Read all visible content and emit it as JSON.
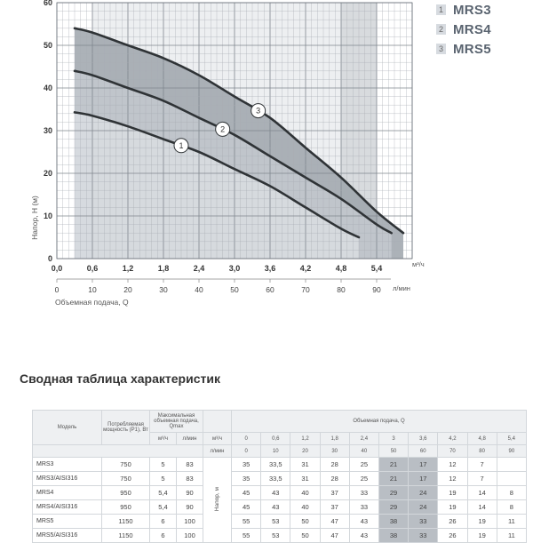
{
  "chart_data": {
    "type": "line",
    "ylabel": "Напор, H (м)",
    "x_units": "м³/ч",
    "x2_units": "л/мин",
    "x2_label": "Объемная подача, Q",
    "x_ticks": [
      "0,0",
      "0,6",
      "1,2",
      "1,8",
      "2,4",
      "3,0",
      "3,6",
      "4,2",
      "4,8",
      "5,4"
    ],
    "x2_ticks": [
      "0",
      "10",
      "20",
      "30",
      "40",
      "50",
      "60",
      "70",
      "80",
      "90"
    ],
    "y_ticks": [
      "0",
      "10",
      "20",
      "30",
      "40",
      "50",
      "60"
    ],
    "xlim": [
      0,
      6.0
    ],
    "ylim": [
      0,
      60
    ],
    "grid": true,
    "series": [
      {
        "name": "1",
        "label": "MRS3",
        "color": "#d9dde2",
        "x": [
          0,
          0.3,
          0.6,
          1.2,
          1.8,
          2.4,
          3.0,
          3.6,
          4.2,
          4.8,
          5.1
        ],
        "y": [
          35,
          34.3,
          33.5,
          31,
          28,
          25,
          21,
          17,
          12,
          7,
          5
        ]
      },
      {
        "name": "2",
        "label": "MRS4",
        "color": "#c4c9cf",
        "x": [
          0,
          0.3,
          0.6,
          1.2,
          1.8,
          2.4,
          3.0,
          3.6,
          4.2,
          4.8,
          5.4,
          5.65
        ],
        "y": [
          45,
          44,
          43,
          40,
          37,
          33,
          29,
          24,
          19,
          14,
          8,
          6
        ]
      },
      {
        "name": "3",
        "label": "MRS5",
        "color": "#9ea4ab",
        "x": [
          0,
          0.3,
          0.6,
          1.2,
          1.8,
          2.4,
          3.0,
          3.6,
          4.2,
          4.8,
          5.4,
          5.85
        ],
        "y": [
          55,
          54,
          53,
          50,
          47,
          43,
          38,
          33,
          26,
          19,
          11,
          6
        ]
      }
    ],
    "shaded_bands": [
      [
        0.6,
        4.8
      ],
      [
        4.8,
        5.4
      ]
    ]
  },
  "legend": [
    {
      "num": "1",
      "name": "MRS3"
    },
    {
      "num": "2",
      "name": "MRS4"
    },
    {
      "num": "3",
      "name": "MRS5"
    }
  ],
  "table": {
    "title": "Сводная таблица характеристик",
    "headers": {
      "model": "Модель",
      "power": "Потребляемая мощность (P1), Вт",
      "qmax": "Максимальная объемная подача, Qmax",
      "qmax_m3": "м³/ч",
      "qmax_lmin": "л/мин",
      "flow": "Объемная подача, Q",
      "unit_m3": "м³/ч",
      "unit_lmin": "л/мин",
      "head": "Напор, м"
    },
    "flow_m3": [
      "0",
      "0,6",
      "1,2",
      "1,8",
      "2,4",
      "3",
      "3,6",
      "4,2",
      "4,8",
      "5,4"
    ],
    "flow_lmin": [
      "0",
      "10",
      "20",
      "30",
      "40",
      "50",
      "60",
      "70",
      "80",
      "90"
    ],
    "rows": [
      {
        "model": "MRS3",
        "power": "750",
        "qmax_m3": "5",
        "qmax_lmin": "83",
        "head": [
          "35",
          "33,5",
          "31",
          "28",
          "25",
          "21",
          "17",
          "12",
          "7",
          ""
        ]
      },
      {
        "model": "MRS3/AISI316",
        "power": "750",
        "qmax_m3": "5",
        "qmax_lmin": "83",
        "head": [
          "35",
          "33,5",
          "31",
          "28",
          "25",
          "21",
          "17",
          "12",
          "7",
          ""
        ]
      },
      {
        "model": "MRS4",
        "power": "950",
        "qmax_m3": "5,4",
        "qmax_lmin": "90",
        "head": [
          "45",
          "43",
          "40",
          "37",
          "33",
          "29",
          "24",
          "19",
          "14",
          "8"
        ]
      },
      {
        "model": "MRS4/AISI316",
        "power": "950",
        "qmax_m3": "5,4",
        "qmax_lmin": "90",
        "head": [
          "45",
          "43",
          "40",
          "37",
          "33",
          "29",
          "24",
          "19",
          "14",
          "8"
        ]
      },
      {
        "model": "MRS5",
        "power": "1150",
        "qmax_m3": "6",
        "qmax_lmin": "100",
        "head": [
          "55",
          "53",
          "50",
          "47",
          "43",
          "38",
          "33",
          "26",
          "19",
          "11"
        ]
      },
      {
        "model": "MRS5/AISI316",
        "power": "1150",
        "qmax_m3": "6",
        "qmax_lmin": "100",
        "head": [
          "55",
          "53",
          "50",
          "47",
          "43",
          "38",
          "33",
          "26",
          "19",
          "11"
        ]
      }
    ]
  }
}
